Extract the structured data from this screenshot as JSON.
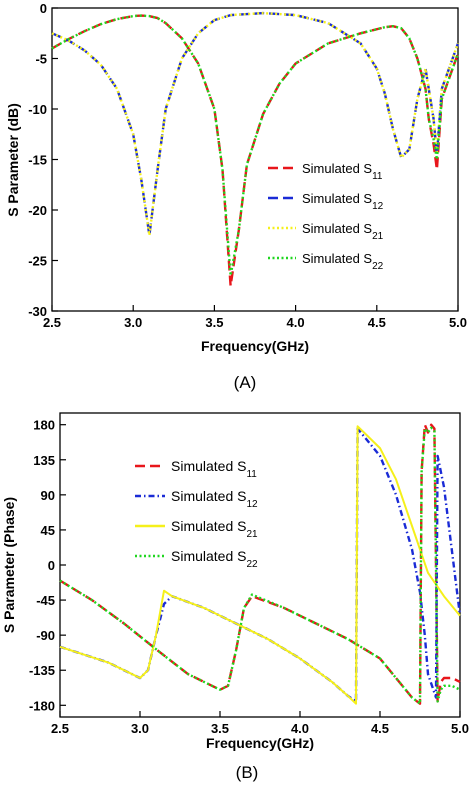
{
  "chart_data": [
    {
      "type": "line",
      "caption": "(A)",
      "xlabel": "Frequency(GHz)",
      "ylabel": "S Parameter (dB)",
      "xlim": [
        2.5,
        5.0
      ],
      "ylim": [
        -30,
        0
      ],
      "xticks": [
        "2.5",
        "3.0",
        "3.5",
        "4.0",
        "4.5",
        "5.0"
      ],
      "yticks": [
        "0",
        "-5",
        "-10",
        "-15",
        "-20",
        "-25",
        "-30"
      ],
      "grid": false,
      "legend_position": "center-right",
      "series": [
        {
          "name": "Simulated S",
          "sub": "11",
          "color": "#e8161b",
          "dash": "long-dash",
          "x": [
            2.5,
            2.6,
            2.7,
            2.8,
            2.9,
            3.0,
            3.05,
            3.1,
            3.15,
            3.2,
            3.3,
            3.4,
            3.5,
            3.55,
            3.6,
            3.65,
            3.7,
            3.8,
            3.9,
            4.0,
            4.2,
            4.4,
            4.55,
            4.6,
            4.65,
            4.7,
            4.75,
            4.8,
            4.82,
            4.85,
            4.87,
            4.9,
            5.0
          ],
          "y": [
            -4.0,
            -3.1,
            -2.3,
            -1.6,
            -1.1,
            -0.8,
            -0.75,
            -0.8,
            -1.0,
            -1.5,
            -3.0,
            -5.5,
            -10.0,
            -16.0,
            -27.5,
            -22.0,
            -15.5,
            -10.5,
            -7.5,
            -5.5,
            -3.5,
            -2.5,
            -1.9,
            -1.8,
            -2.0,
            -3.0,
            -5.0,
            -8.0,
            -11.0,
            -13.5,
            -16.0,
            -9.0,
            -4.5
          ]
        },
        {
          "name": "Simulated S",
          "sub": "12",
          "color": "#1a2bd6",
          "dash": "long-dash",
          "x": [
            2.5,
            2.6,
            2.7,
            2.8,
            2.9,
            3.0,
            3.05,
            3.1,
            3.15,
            3.2,
            3.3,
            3.4,
            3.5,
            3.6,
            3.8,
            4.0,
            4.2,
            4.4,
            4.5,
            4.55,
            4.6,
            4.65,
            4.7,
            4.75,
            4.8,
            4.85,
            4.87,
            4.9,
            5.0
          ],
          "y": [
            -2.5,
            -3.2,
            -4.2,
            -5.6,
            -8.0,
            -12.5,
            -17.0,
            -22.5,
            -16.0,
            -10.0,
            -5.0,
            -2.5,
            -1.2,
            -0.7,
            -0.5,
            -0.7,
            -1.5,
            -3.5,
            -6.0,
            -8.5,
            -12.0,
            -14.8,
            -14.0,
            -9.0,
            -6.0,
            -11.0,
            -14.5,
            -8.0,
            -3.5
          ]
        },
        {
          "name": "Simulated S",
          "sub": "21",
          "color": "#f5f01a",
          "dash": "dotted",
          "x": [
            2.5,
            2.6,
            2.7,
            2.8,
            2.9,
            3.0,
            3.05,
            3.1,
            3.15,
            3.2,
            3.3,
            3.4,
            3.5,
            3.6,
            3.8,
            4.0,
            4.2,
            4.4,
            4.5,
            4.55,
            4.6,
            4.65,
            4.7,
            4.75,
            4.8,
            4.85,
            4.87,
            4.9,
            5.0
          ],
          "y": [
            -2.5,
            -3.2,
            -4.2,
            -5.6,
            -8.0,
            -12.5,
            -17.0,
            -22.5,
            -16.0,
            -10.0,
            -5.0,
            -2.5,
            -1.2,
            -0.7,
            -0.5,
            -0.7,
            -1.5,
            -3.5,
            -6.0,
            -8.5,
            -12.0,
            -14.8,
            -14.0,
            -9.0,
            -6.0,
            -11.0,
            -14.5,
            -8.0,
            -3.5
          ]
        },
        {
          "name": "Simulated S",
          "sub": "22",
          "color": "#1fd61f",
          "dash": "dotted",
          "x": [
            2.5,
            2.6,
            2.7,
            2.8,
            2.9,
            3.0,
            3.05,
            3.1,
            3.15,
            3.2,
            3.3,
            3.4,
            3.5,
            3.55,
            3.6,
            3.65,
            3.7,
            3.8,
            3.9,
            4.0,
            4.2,
            4.4,
            4.55,
            4.6,
            4.65,
            4.7,
            4.75,
            4.8,
            4.82,
            4.85,
            4.87,
            4.9,
            5.0
          ],
          "y": [
            -4.0,
            -3.1,
            -2.3,
            -1.6,
            -1.1,
            -0.8,
            -0.75,
            -0.8,
            -1.0,
            -1.5,
            -3.0,
            -5.5,
            -10.0,
            -16.0,
            -26.5,
            -22.0,
            -15.5,
            -10.5,
            -7.5,
            -5.5,
            -3.5,
            -2.5,
            -1.9,
            -1.8,
            -2.0,
            -3.0,
            -5.0,
            -8.0,
            -11.0,
            -13.0,
            -15.0,
            -9.0,
            -4.5
          ]
        }
      ]
    },
    {
      "type": "line",
      "caption": "(B)",
      "xlabel": "Frequency(GHz)",
      "ylabel": "S Parameter (Phase)",
      "xlim": [
        2.5,
        5.0
      ],
      "ylim": [
        -195,
        195
      ],
      "xticks": [
        "2.5",
        "3.0",
        "3.5",
        "4.0",
        "4.5",
        "5.0"
      ],
      "yticks": [
        "180",
        "135",
        "90",
        "45",
        "0",
        "-45",
        "-90",
        "-135",
        "-180"
      ],
      "grid": false,
      "legend_position": "top-left",
      "series": [
        {
          "name": "Simulated S",
          "sub": "11",
          "color": "#e8161b",
          "dash": "long-dash",
          "x": [
            2.5,
            2.7,
            2.9,
            3.1,
            3.3,
            3.5,
            3.55,
            3.6,
            3.65,
            3.7,
            3.9,
            4.1,
            4.3,
            4.5,
            4.6,
            4.7,
            4.75,
            4.76,
            4.78,
            4.8,
            4.82,
            4.84,
            4.86,
            4.88,
            4.9,
            4.95,
            5.0
          ],
          "y": [
            -20,
            -45,
            -75,
            -108,
            -140,
            -160,
            -155,
            -110,
            -55,
            -40,
            -55,
            -75,
            -95,
            -120,
            -145,
            -170,
            -178,
            120,
            180,
            170,
            180,
            175,
            -175,
            -150,
            -145,
            -145,
            -150
          ]
        },
        {
          "name": "Simulated S",
          "sub": "12",
          "color": "#1a2bd6",
          "dash": "dash-dot",
          "x": [
            2.5,
            2.8,
            3.0,
            3.05,
            3.1,
            3.15,
            3.2,
            3.4,
            3.6,
            3.8,
            4.0,
            4.2,
            4.3,
            4.35,
            4.36,
            4.4,
            4.5,
            4.6,
            4.7,
            4.75,
            4.78,
            4.8,
            4.85,
            4.86,
            4.9,
            5.0
          ],
          "y": [
            -105,
            -125,
            -145,
            -135,
            -90,
            -50,
            -40,
            -55,
            -75,
            -95,
            -120,
            -150,
            -168,
            -175,
            175,
            165,
            140,
            90,
            20,
            -35,
            -90,
            -140,
            -170,
            140,
            100,
            -65
          ]
        },
        {
          "name": "Simulated S",
          "sub": "21",
          "color": "#f5f01a",
          "dash": "solid",
          "x": [
            2.5,
            2.8,
            3.0,
            3.05,
            3.1,
            3.15,
            3.2,
            3.4,
            3.6,
            3.8,
            4.0,
            4.2,
            4.3,
            4.35,
            4.36,
            4.4,
            4.5,
            4.6,
            4.7,
            4.8,
            4.9,
            5.0
          ],
          "y": [
            -105,
            -125,
            -145,
            -135,
            -90,
            -33,
            -40,
            -55,
            -75,
            -95,
            -120,
            -150,
            -168,
            -178,
            178,
            170,
            150,
            110,
            50,
            -10,
            -40,
            -65
          ]
        },
        {
          "name": "Simulated S",
          "sub": "22",
          "color": "#1fd61f",
          "dash": "dotted",
          "x": [
            2.5,
            2.7,
            2.9,
            3.1,
            3.3,
            3.5,
            3.55,
            3.6,
            3.65,
            3.7,
            3.9,
            4.1,
            4.3,
            4.5,
            4.6,
            4.7,
            4.75,
            4.76,
            4.78,
            4.8,
            4.82,
            4.84,
            4.86,
            4.88,
            4.9,
            4.95,
            5.0
          ],
          "y": [
            -20,
            -45,
            -75,
            -108,
            -140,
            -160,
            -155,
            -110,
            -55,
            -38,
            -55,
            -75,
            -95,
            -120,
            -145,
            -170,
            -178,
            120,
            175,
            170,
            176,
            172,
            -175,
            -160,
            -155,
            -155,
            -160
          ]
        }
      ]
    }
  ]
}
